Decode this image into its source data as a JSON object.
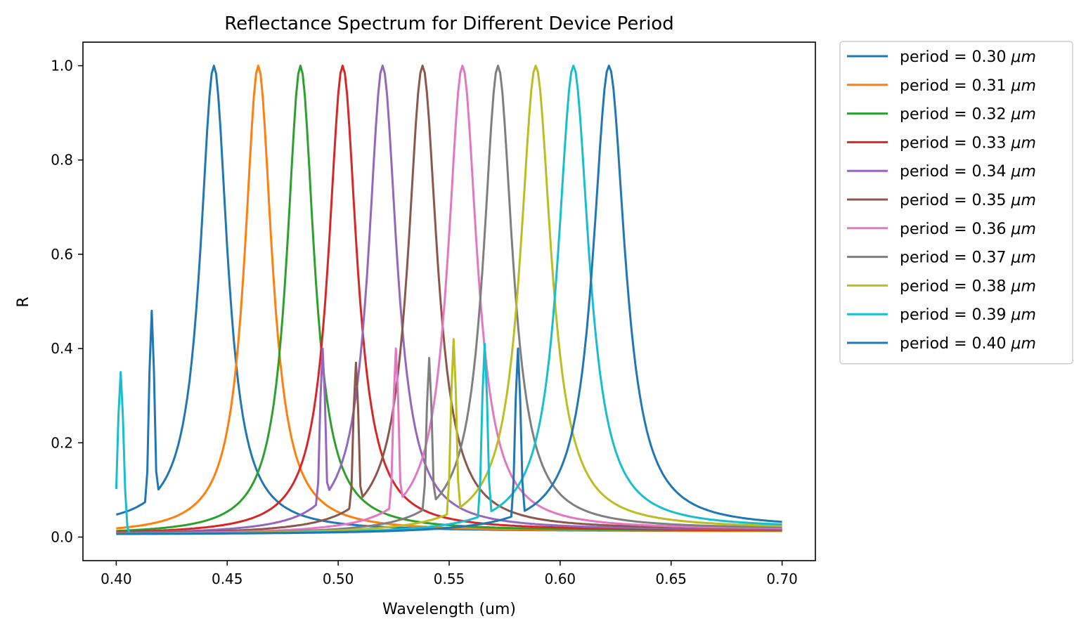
{
  "chart_data": {
    "type": "line",
    "title": "Reflectance Spectrum for Different Device Period",
    "xlabel": "Wavelength (um)",
    "ylabel": "R",
    "xlim": [
      0.385,
      0.715
    ],
    "ylim": [
      -0.05,
      1.05
    ],
    "xticks": [
      "0.40",
      "0.45",
      "0.50",
      "0.55",
      "0.60",
      "0.65",
      "0.70"
    ],
    "yticks": [
      "0.0",
      "0.2",
      "0.4",
      "0.6",
      "0.8",
      "1.0"
    ],
    "grid": false,
    "legend_position": "outside-right",
    "series": [
      {
        "name": "period = 0.30",
        "unit": "μm",
        "color": "#1f77b4",
        "peak": 0.444,
        "width": 0.0075,
        "left_base": 0.02,
        "right_base": 0.012,
        "anomalies": [
          [
            0.416,
            0.48
          ]
        ]
      },
      {
        "name": "period = 0.31",
        "unit": "μm",
        "color": "#ff7f0e",
        "peak": 0.464,
        "width": 0.0075,
        "left_base": 0.005,
        "right_base": 0.012,
        "anomalies": []
      },
      {
        "name": "period = 0.32",
        "unit": "μm",
        "color": "#2ca02c",
        "peak": 0.483,
        "width": 0.0075,
        "left_base": 0.005,
        "right_base": 0.013,
        "anomalies": []
      },
      {
        "name": "period = 0.33",
        "unit": "μm",
        "color": "#d62728",
        "peak": 0.502,
        "width": 0.0078,
        "left_base": 0.005,
        "right_base": 0.014,
        "anomalies": []
      },
      {
        "name": "period = 0.34",
        "unit": "μm",
        "color": "#9467bd",
        "peak": 0.52,
        "width": 0.0078,
        "left_base": 0.005,
        "right_base": 0.015,
        "anomalies": [
          [
            0.493,
            0.4
          ]
        ]
      },
      {
        "name": "period = 0.35",
        "unit": "μm",
        "color": "#8c564b",
        "peak": 0.538,
        "width": 0.008,
        "left_base": 0.005,
        "right_base": 0.016,
        "anomalies": [
          [
            0.508,
            0.37
          ]
        ]
      },
      {
        "name": "period = 0.36",
        "unit": "μm",
        "color": "#e377c2",
        "peak": 0.556,
        "width": 0.008,
        "left_base": 0.005,
        "right_base": 0.016,
        "anomalies": [
          [
            0.526,
            0.4
          ]
        ]
      },
      {
        "name": "period = 0.37",
        "unit": "μm",
        "color": "#7f7f7f",
        "peak": 0.572,
        "width": 0.008,
        "left_base": 0.005,
        "right_base": 0.017,
        "anomalies": [
          [
            0.541,
            0.38
          ]
        ]
      },
      {
        "name": "period = 0.38",
        "unit": "μm",
        "color": "#bcbd22",
        "peak": 0.589,
        "width": 0.0085,
        "left_base": 0.005,
        "right_base": 0.018,
        "anomalies": [
          [
            0.552,
            0.42
          ]
        ]
      },
      {
        "name": "period = 0.39",
        "unit": "μm",
        "color": "#17becf",
        "peak": 0.606,
        "width": 0.0085,
        "left_base": 0.005,
        "right_base": 0.019,
        "anomalies": [
          [
            0.402,
            0.35
          ],
          [
            0.566,
            0.41
          ]
        ]
      },
      {
        "name": "period = 0.40",
        "unit": "μm",
        "color": "#1f77b4",
        "peak": 0.622,
        "width": 0.0088,
        "left_base": 0.005,
        "right_base": 0.02,
        "anomalies": [
          [
            0.581,
            0.4
          ]
        ]
      }
    ]
  }
}
